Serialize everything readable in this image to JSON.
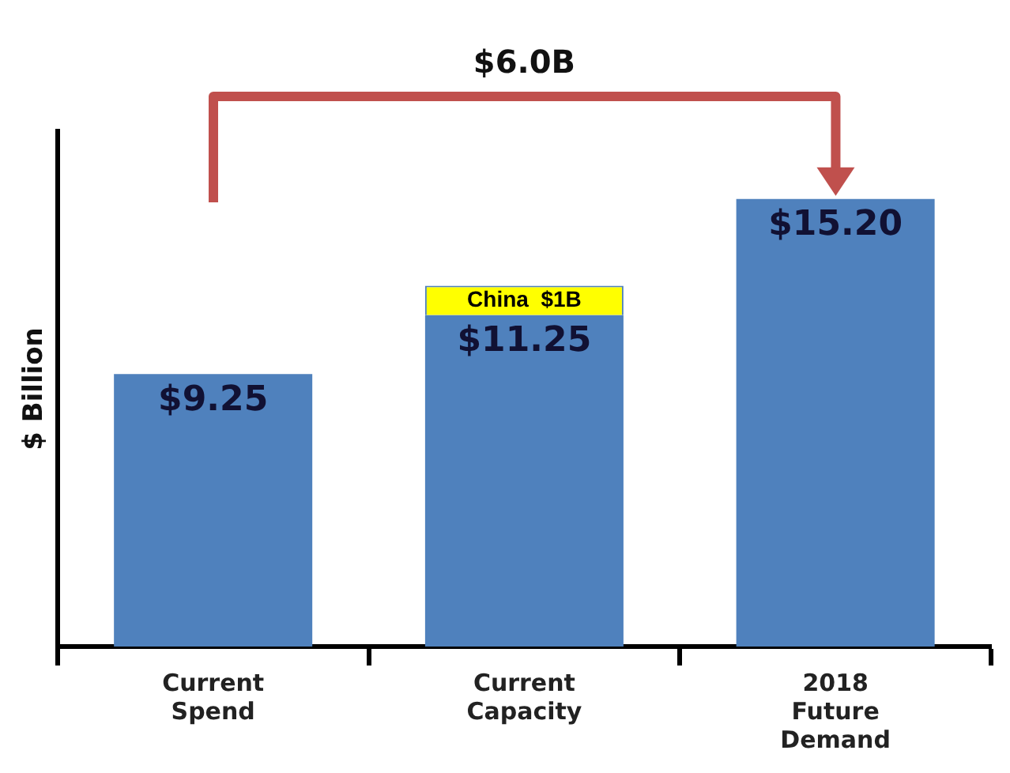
{
  "chart_data": {
    "type": "bar",
    "ylabel": "$ Billion",
    "categories": [
      "Current Spend",
      "Current Capacity",
      "2018 Future Demand"
    ],
    "series": [
      {
        "color": "#4f81bd",
        "values": [
          9.25,
          11.25,
          15.2
        ],
        "value_labels": [
          "$9.25",
          "$11.25",
          "$15.20"
        ]
      },
      {
        "color": "#ffff00",
        "values": [
          null,
          1,
          null
        ],
        "value_labels": [
          null,
          "China  $1B",
          null
        ]
      }
    ],
    "stacked": true,
    "ylim": [
      0,
      17.5
    ],
    "tick_labels": "x",
    "grid": false,
    "legend": false,
    "annotations": [
      "$6.0B"
    ]
  }
}
